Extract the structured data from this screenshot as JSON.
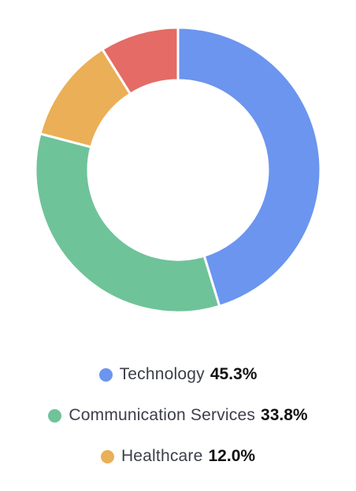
{
  "chart_data": {
    "type": "pie",
    "variant": "donut",
    "title": "",
    "slices": [
      {
        "label": "Technology",
        "value": 45.3,
        "value_label": "45.3%",
        "color": "#6b95ef",
        "in_legend": true
      },
      {
        "label": "Communication Services",
        "value": 33.8,
        "value_label": "33.8%",
        "color": "#6fc399",
        "in_legend": true
      },
      {
        "label": "Healthcare",
        "value": 12.0,
        "value_label": "12.0%",
        "color": "#ebaf57",
        "in_legend": true
      },
      {
        "label": "",
        "value": 8.9,
        "value_label": "",
        "color": "#e46b66",
        "in_legend": false
      }
    ],
    "legend_position": "bottom"
  }
}
